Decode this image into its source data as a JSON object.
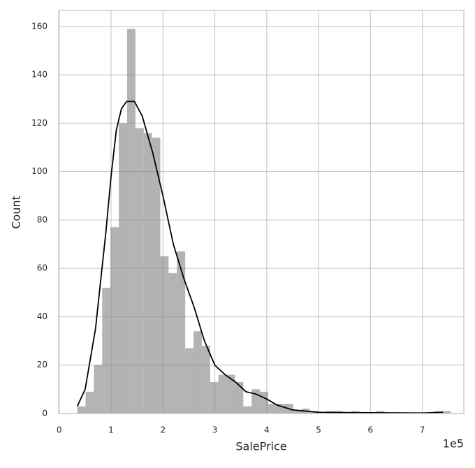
{
  "chart_data": {
    "type": "histogram",
    "x_label": "SalePrice",
    "y_label": "Count",
    "x_offset_label": "1e5",
    "bins": [
      34900,
      50902,
      66904,
      82906,
      98908,
      114910,
      130912,
      146914,
      162916,
      178918,
      194920,
      210922,
      226924,
      242926,
      258928,
      274930,
      290932,
      306934,
      322936,
      338938,
      354940,
      370942,
      386944,
      402946,
      418948,
      434950,
      450952,
      466954,
      482956,
      498958,
      514960,
      530962,
      546964,
      562966,
      578968,
      594970,
      610972,
      626974,
      642976,
      658978,
      674980,
      690982,
      706984,
      722986,
      738988,
      754990
    ],
    "values": [
      3,
      9,
      20,
      52,
      77,
      120,
      159,
      118,
      116,
      114,
      65,
      58,
      67,
      27,
      34,
      28,
      13,
      16,
      16,
      13,
      3,
      10,
      9,
      4,
      4,
      4,
      1,
      2,
      1,
      0,
      1,
      1,
      0,
      1,
      0,
      0,
      1,
      0,
      0,
      0,
      0,
      0,
      0,
      1,
      1
    ],
    "color": "#808080",
    "kde": {
      "x": [
        34900,
        50000,
        70000,
        90000,
        100000,
        110000,
        120000,
        130000,
        145000,
        160000,
        180000,
        200000,
        220000,
        240000,
        260000,
        280000,
        300000,
        320000,
        340000,
        360000,
        380000,
        400000,
        420000,
        450000,
        500000,
        600000,
        700000,
        740000
      ],
      "values": [
        3,
        10,
        35,
        75,
        98,
        117,
        126,
        129,
        129,
        123,
        108,
        90,
        70,
        56,
        44,
        30,
        20,
        16,
        13,
        9,
        8,
        6,
        3.5,
        1.5,
        0.5,
        0.3,
        0.2,
        0.5
      ],
      "color": "#000000"
    },
    "xlim": [
      -1000,
      780000
    ],
    "ylim": [
      0,
      166.6
    ],
    "xticks": [
      {
        "value": 0,
        "label": "0"
      },
      {
        "value": 100000,
        "label": "1"
      },
      {
        "value": 200000,
        "label": "2"
      },
      {
        "value": 300000,
        "label": "3"
      },
      {
        "value": 400000,
        "label": "4"
      },
      {
        "value": 500000,
        "label": "5"
      },
      {
        "value": 600000,
        "label": "6"
      },
      {
        "value": 700000,
        "label": "7"
      }
    ],
    "yticks": [
      0,
      20,
      40,
      60,
      80,
      100,
      120,
      140,
      160
    ],
    "grid": true
  }
}
